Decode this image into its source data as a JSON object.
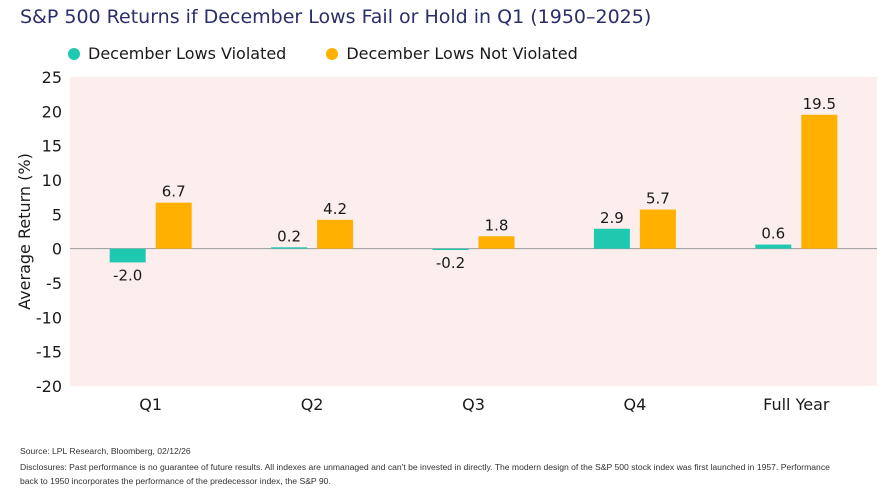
{
  "title": "S&P 500 Returns if December Lows Fail or Hold in Q1 (1950–2025)",
  "colors": {
    "violated": "#1ec9b0",
    "not_violated": "#ffb000",
    "plot_bg": "#fdeeee",
    "title": "#2a2f6a"
  },
  "chart_data": {
    "type": "bar",
    "title": "S&P 500 Returns if December Lows Fail or Hold in Q1 (1950–2025)",
    "xlabel": "",
    "ylabel": "Average Return (%)",
    "categories": [
      "Q1",
      "Q2",
      "Q3",
      "Q4",
      "Full Year"
    ],
    "series": [
      {
        "name": "December Lows Violated",
        "values": [
          -2.0,
          0.2,
          -0.2,
          2.9,
          0.6
        ],
        "labels": [
          "-2.0",
          "0.2",
          "-0.2",
          "2.9",
          "0.6"
        ]
      },
      {
        "name": "December Lows Not Violated",
        "values": [
          6.7,
          4.2,
          1.8,
          5.7,
          19.5
        ],
        "labels": [
          "6.7",
          "4.2",
          "1.8",
          "5.7",
          "19.5"
        ]
      }
    ],
    "ylim": [
      -20,
      25
    ],
    "yticks": [
      "25",
      "20",
      "15",
      "10",
      "5",
      "0",
      "-5",
      "-10",
      "-15",
      "-20"
    ],
    "legend": "top-left",
    "grid": false
  },
  "footer": {
    "source": "Source: LPL Research, Bloomberg, 02/12/26",
    "disclosure_line1": "Disclosures: Past performance is no guarantee of future results. All indexes are unmanaged and can't be invested in directly. The modern design of the S&P 500 stock index was first launched in 1957. Performance",
    "disclosure_line2": "back to 1950 incorporates the performance of the predecessor index, the S&P 90."
  }
}
